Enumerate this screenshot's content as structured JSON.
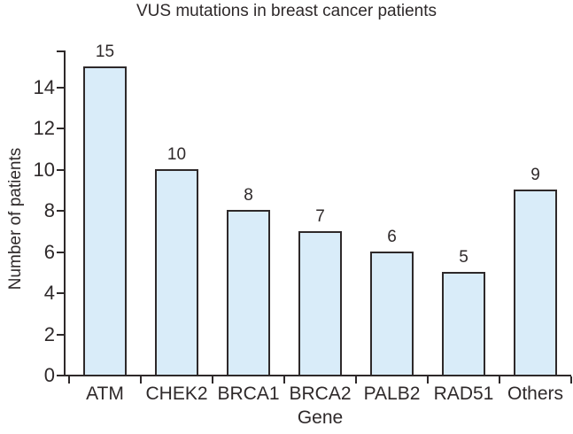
{
  "figure": {
    "background": "#ffffff",
    "text_color": "#2e292a",
    "axis_color": "#2e292a"
  },
  "chart_data": {
    "type": "bar",
    "title": "VUS mutations in breast cancer patients",
    "xlabel": "Gene",
    "ylabel": "Number of patients",
    "categories": [
      "ATM",
      "CHEK2",
      "BRCA1",
      "BRCA2",
      "PALB2",
      "RAD51",
      "Others"
    ],
    "values": [
      15,
      10,
      8,
      7,
      6,
      5,
      9
    ],
    "yticks": [
      0,
      2,
      4,
      6,
      8,
      10,
      12,
      14
    ],
    "ylim": [
      0,
      15.8
    ],
    "grid": false,
    "legend": "none",
    "value_labels_shown": true,
    "bar_fill": "#d9ecf9",
    "bar_border": "#2e292a"
  }
}
